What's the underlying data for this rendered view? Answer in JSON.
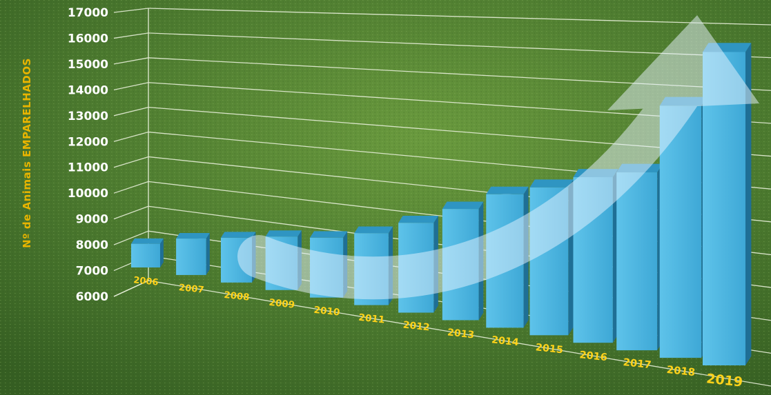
{
  "chart_data": {
    "type": "bar",
    "title": "",
    "ylabel": "Nº de Animais EMPARELHADOS",
    "xlabel": "",
    "categories": [
      "2006",
      "2007",
      "2008",
      "2009",
      "2010",
      "2011",
      "2012",
      "2013",
      "2014",
      "2015",
      "2016",
      "2017",
      "2018",
      "2019"
    ],
    "values": [
      7000,
      7500,
      7800,
      8100,
      8300,
      8700,
      9300,
      10000,
      10700,
      11100,
      11600,
      11900,
      14200,
      16000
    ],
    "ylim": [
      6000,
      17000
    ],
    "yticks": [
      "6000",
      "7000",
      "8000",
      "9000",
      "10000",
      "11000",
      "12000",
      "13000",
      "14000",
      "15000",
      "16000",
      "17000"
    ],
    "grid": true,
    "style": "3d",
    "overlay": "upward-trend-arrow",
    "colors": {
      "bar_front": "#4fb6e0",
      "bar_top": "#2f95c2",
      "bar_side": "#1f6f95",
      "xtick_text": "#ffd21a",
      "ylabel_text": "#e8b400",
      "ytick_text": "#ffffff",
      "background": "#4c7a2f"
    }
  }
}
